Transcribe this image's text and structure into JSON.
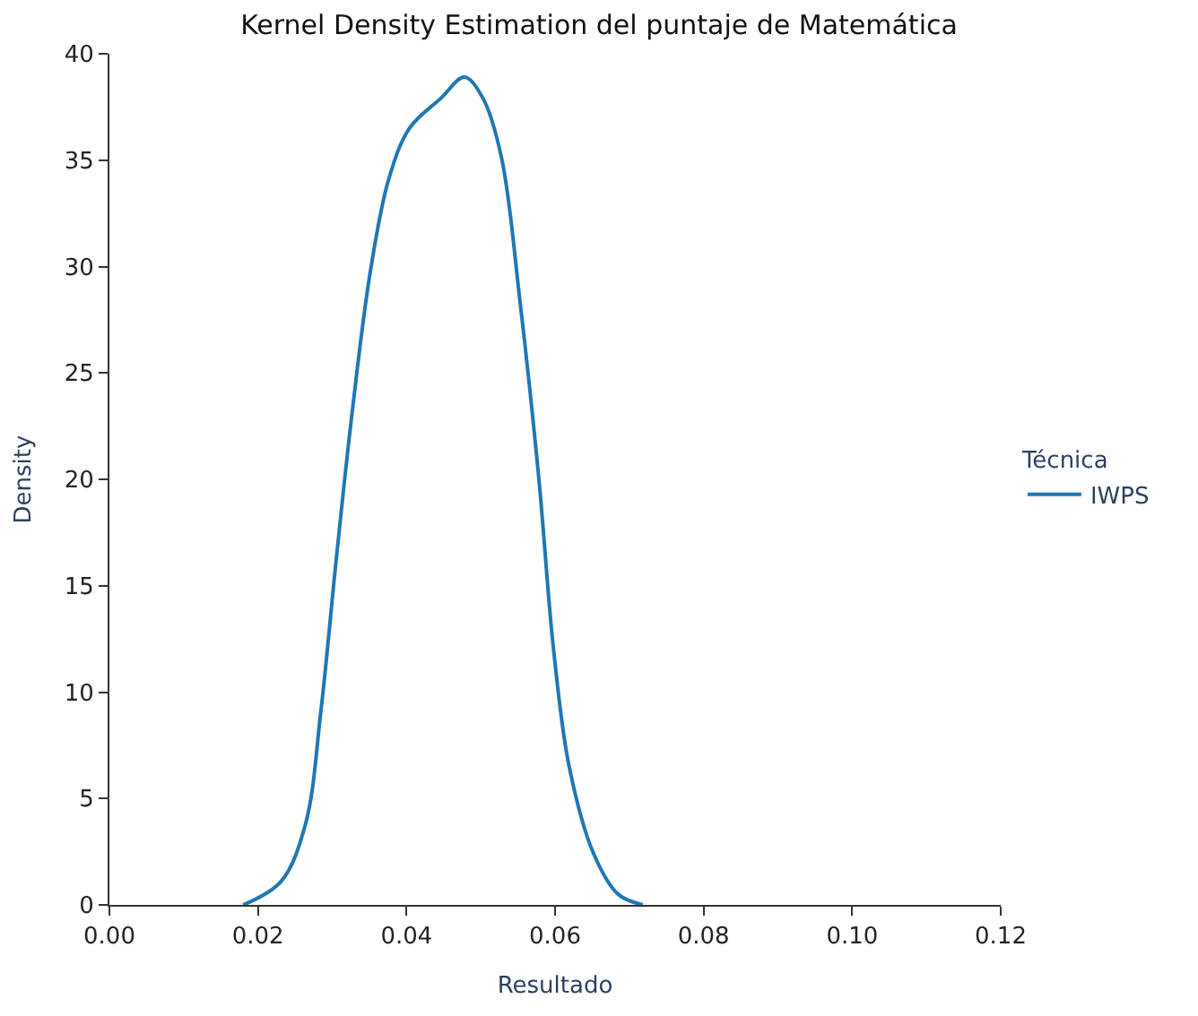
{
  "chart_data": {
    "type": "line",
    "title": "Kernel Density Estimation del puntaje de Matemática",
    "xlabel": "Resultado",
    "ylabel": "Density",
    "legend_title": "Técnica",
    "x": [
      0.018,
      0.0231,
      0.0264,
      0.0285,
      0.0305,
      0.0326,
      0.0351,
      0.0376,
      0.0404,
      0.0446,
      0.0478,
      0.0503,
      0.0528,
      0.0553,
      0.0578,
      0.0598,
      0.0619,
      0.0652,
      0.0685,
      0.0718
    ],
    "series": [
      {
        "name": "IWPS",
        "color": "#1f77b4",
        "values": [
          0,
          1.1,
          3.8,
          9.2,
          16.1,
          22.9,
          29.7,
          34.1,
          36.5,
          37.9,
          38.9,
          37.9,
          35.1,
          28.3,
          20.1,
          12.0,
          6.5,
          2.4,
          0.5,
          0
        ]
      }
    ],
    "xlim": [
      0,
      0.12
    ],
    "xticks": [
      {
        "value": 0,
        "label": "0.00"
      },
      {
        "value": 0.02,
        "label": "0.02"
      },
      {
        "value": 0.04,
        "label": "0.04"
      },
      {
        "value": 0.06,
        "label": "0.06"
      },
      {
        "value": 0.08,
        "label": "0.08"
      },
      {
        "value": 0.1,
        "label": "0.10"
      },
      {
        "value": 0.12,
        "label": "0.12"
      }
    ],
    "ylim": [
      0,
      40
    ],
    "yticks": [
      0,
      5,
      10,
      15,
      20,
      25,
      30,
      35,
      40
    ],
    "legend": "right",
    "marker": "none",
    "line_style": "solid"
  }
}
